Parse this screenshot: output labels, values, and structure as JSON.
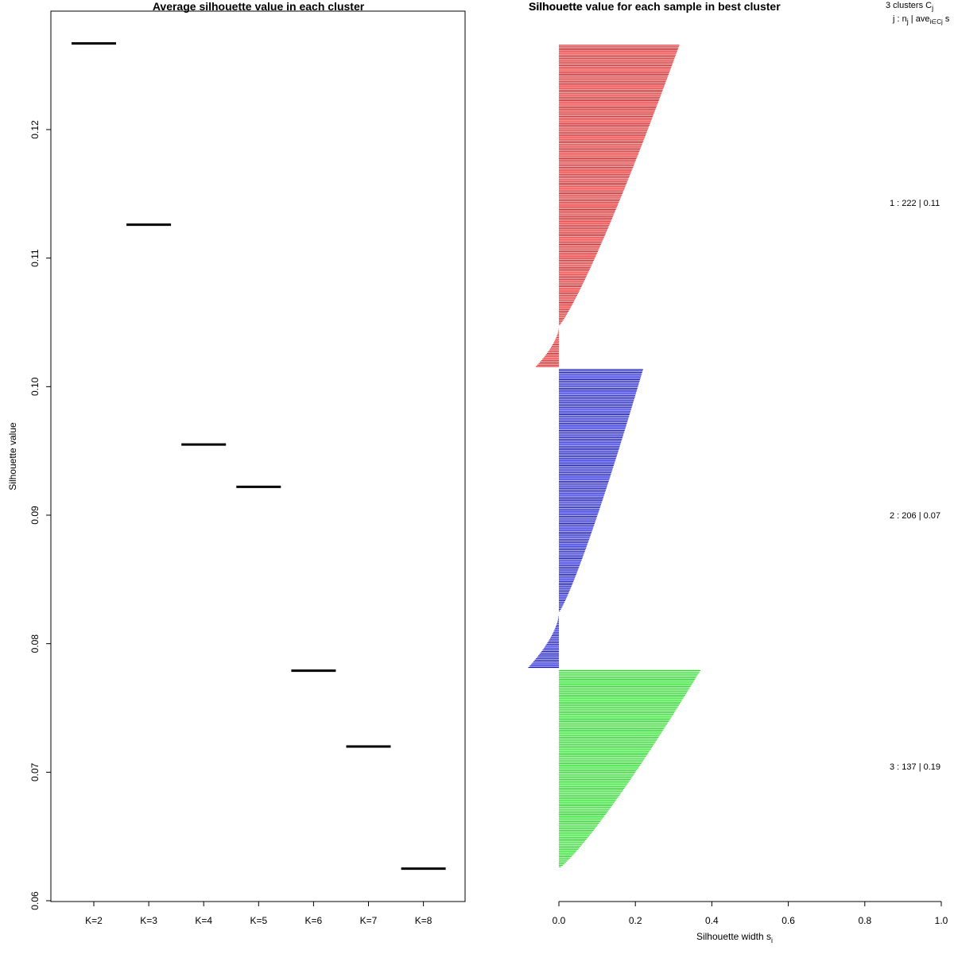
{
  "chart_data": [
    {
      "type": "scatter",
      "marker": "horizontal-segment",
      "title": "Average silhouette value in each cluster",
      "xlabel": "",
      "ylabel": "Silhouette value",
      "categories": [
        "K=2",
        "K=3",
        "K=4",
        "K=5",
        "K=6",
        "K=7",
        "K=8"
      ],
      "values": [
        0.1267,
        0.1126,
        0.0955,
        0.0922,
        0.0779,
        0.072,
        0.0625
      ],
      "ylim": [
        0.06,
        0.13
      ],
      "yticks": [
        0.06,
        0.07,
        0.08,
        0.09,
        0.1,
        0.11,
        0.12
      ],
      "ytick_labels": [
        "0.06",
        "0.07",
        "0.08",
        "0.09",
        "0.10",
        "0.11",
        "0.12"
      ],
      "grid": false
    },
    {
      "type": "bar",
      "orientation": "horizontal",
      "title": "Silhouette value for each sample in best cluster",
      "overlapping_title": "Silhouette",
      "xlabel": "Silhouette width s",
      "xlabel_subscript": "i",
      "xlim": [
        0.0,
        1.0
      ],
      "xticks": [
        0.0,
        0.2,
        0.4,
        0.6,
        0.8,
        1.0
      ],
      "xtick_labels": [
        "0.0",
        "0.2",
        "0.4",
        "0.6",
        "0.8",
        "1.0"
      ],
      "header_line1": "3  clusters  C",
      "header_line1_sub": "j",
      "header_line2_a": "j :  n",
      "header_line2_sub1": "j",
      "header_line2_b": " | ave",
      "header_line2_sub2": "i∈Cj",
      "header_line2_c": "  s",
      "series": [
        {
          "name": "1",
          "label": "1 :  222  |  0.11",
          "n": 222,
          "avg": 0.11,
          "color": "#e31a1c",
          "max": 0.315,
          "min": -0.06,
          "negative_count": 28
        },
        {
          "name": "2",
          "label": "2 :  206  |  0.07",
          "n": 206,
          "avg": 0.07,
          "color": "#1010d0",
          "max": 0.22,
          "min": -0.08,
          "negative_count": 38
        },
        {
          "name": "3",
          "label": "3 :  137  |  0.19",
          "n": 137,
          "avg": 0.19,
          "color": "#22dd22",
          "max": 0.37,
          "min": 0.0,
          "negative_count": 0
        }
      ]
    }
  ]
}
